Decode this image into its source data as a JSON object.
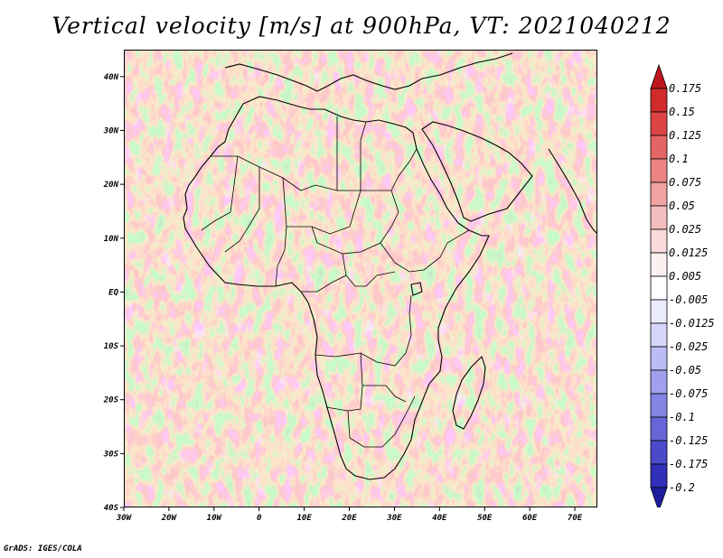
{
  "title": "Vertical velocity [m/s] at 900hPa, VT: 2021040212",
  "footer": "GrADS: IGES/COLA",
  "map": {
    "lon_range": [
      -30,
      75
    ],
    "lat_range": [
      -40,
      45
    ],
    "x_ticks": [
      "30W",
      "20W",
      "10W",
      "0",
      "10E",
      "20E",
      "30E",
      "40E",
      "50E",
      "60E",
      "70E"
    ],
    "y_ticks": [
      "40N",
      "30N",
      "20N",
      "10N",
      "EQ",
      "10S",
      "20S",
      "30S",
      "40S"
    ]
  },
  "colorbar": {
    "levels": [
      "0.175",
      "0.15",
      "0.125",
      "0.1",
      "0.075",
      "0.05",
      "0.025",
      "0.0125",
      "0.005",
      "-0.005",
      "-0.0125",
      "-0.025",
      "-0.05",
      "-0.075",
      "-0.1",
      "-0.125",
      "-0.175",
      "-0.2"
    ],
    "colors": [
      "#c0161d",
      "#d02a2a",
      "#dd4545",
      "#e56464",
      "#ec8484",
      "#f1a2a2",
      "#f5bebe",
      "#f9d9d9",
      "#fdf0f0",
      "#ffffff",
      "#ececff",
      "#d6d6fb",
      "#bcbcf5",
      "#a0a0ee",
      "#8484e4",
      "#6666d8",
      "#4a4acb",
      "#3030b8",
      "#1d1d9e"
    ]
  }
}
